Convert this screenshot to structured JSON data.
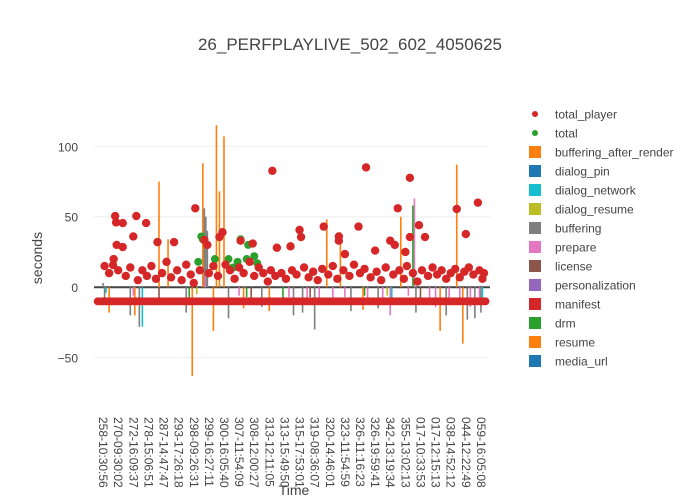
{
  "chart_data": {
    "type": "bar+scatter",
    "title": "26_PERFPLAYLIVE_502_602_4050625",
    "xlabel": "Time",
    "ylabel": "seconds",
    "ylim": [
      -80,
      147
    ],
    "xlim": [
      -0.6,
      25.6
    ],
    "yticks": [
      -50,
      0,
      50,
      100
    ],
    "ytick_labels": [
      "−50",
      "0",
      "50",
      "100"
    ],
    "grid": true,
    "legend_position": "right",
    "categories": [
      "258-10:30:56",
      "270-09:30:02",
      "272-16:09:37",
      "278-15:06:51",
      "287-14:47:47",
      "293-17:26:18",
      "298-09:26:31",
      "299-16:27:11",
      "300-16:05:40",
      "307-11:54:09",
      "308-12:00:27",
      "313-12:11:05",
      "313-15:49:50",
      "315-17:53:01",
      "319-08:36:07",
      "320-14:46:01",
      "323-11:54:59",
      "326-11:16:23",
      "326-19:59:41",
      "342-13:19:34",
      "355-13:02:13",
      "017-10:33:53",
      "017-12:15:13",
      "038-14:52:12",
      "044-12:22:49",
      "059-16:05:08"
    ],
    "legend": [
      {
        "name": "total_player",
        "color": "#d62728",
        "marker": "circle"
      },
      {
        "name": "total",
        "color": "#2ca02c",
        "marker": "circle"
      },
      {
        "name": "buffering_after_render",
        "color": "#ff7f0e",
        "marker": "square"
      },
      {
        "name": "dialog_pin",
        "color": "#1f77b4",
        "marker": "square"
      },
      {
        "name": "dialog_network",
        "color": "#17becf",
        "marker": "square"
      },
      {
        "name": "dialog_resume",
        "color": "#bcbd22",
        "marker": "square"
      },
      {
        "name": "buffering",
        "color": "#7f7f7f",
        "marker": "square"
      },
      {
        "name": "prepare",
        "color": "#e377c2",
        "marker": "square"
      },
      {
        "name": "license",
        "color": "#8c564b",
        "marker": "square"
      },
      {
        "name": "personalization",
        "color": "#9467bd",
        "marker": "square"
      },
      {
        "name": "manifest",
        "color": "#d62728",
        "marker": "square"
      },
      {
        "name": "drm",
        "color": "#2ca02c",
        "marker": "square"
      },
      {
        "name": "resume",
        "color": "#ff7f0e",
        "marker": "square"
      },
      {
        "name": "media_url",
        "color": "#1f77b4",
        "marker": "square"
      }
    ],
    "bars": [
      [
        "buffering_after_render",
        3.7,
        75
      ],
      [
        "buffering_after_render",
        6.6,
        88
      ],
      [
        "buffering_after_render",
        7.5,
        115
      ],
      [
        "buffering_after_render",
        8.0,
        107
      ],
      [
        "buffering_after_render",
        7.7,
        68
      ],
      [
        "buffering_after_render",
        4.3,
        34
      ],
      [
        "buffering_after_render",
        5.9,
        -63
      ],
      [
        "buffering_after_render",
        7.3,
        -31
      ],
      [
        "buffering_after_render",
        14.8,
        48
      ],
      [
        "buffering_after_render",
        15.7,
        39
      ],
      [
        "buffering_after_render",
        19.7,
        50
      ],
      [
        "buffering_after_render",
        23.4,
        87
      ],
      [
        "buffering_after_render",
        23.8,
        -40
      ],
      [
        "buffering_after_render",
        22.3,
        -31
      ],
      [
        "buffering_after_render",
        0.4,
        -18
      ],
      [
        "buffering_after_render",
        2.1,
        -20
      ],
      [
        "buffering_after_render",
        9.3,
        -15
      ],
      [
        "buffering_after_render",
        17.2,
        -16
      ],
      [
        "buffering_after_render",
        11.0,
        -17
      ],
      [
        "buffering",
        6.7,
        56
      ],
      [
        "buffering",
        6.8,
        50
      ],
      [
        "buffering",
        6.9,
        40
      ],
      [
        "buffering",
        0.0,
        3
      ],
      [
        "buffering",
        0.1,
        -12
      ],
      [
        "buffering",
        1.8,
        -20
      ],
      [
        "buffering",
        2.4,
        -28
      ],
      [
        "buffering",
        5.5,
        -18
      ],
      [
        "buffering",
        8.3,
        -22
      ],
      [
        "buffering",
        10.5,
        -14
      ],
      [
        "buffering",
        12.6,
        -20
      ],
      [
        "buffering",
        13.2,
        -18
      ],
      [
        "buffering",
        14.0,
        -30
      ],
      [
        "buffering",
        16.4,
        -17
      ],
      [
        "buffering",
        18.2,
        -15
      ],
      [
        "buffering",
        20.7,
        -18
      ],
      [
        "buffering",
        22.7,
        -20
      ],
      [
        "buffering",
        24.1,
        -23
      ],
      [
        "buffering",
        24.6,
        -22
      ],
      [
        "buffering",
        25.0,
        -18
      ],
      [
        "prepare",
        6.75,
        8
      ],
      [
        "prepare",
        2.0,
        -6
      ],
      [
        "prepare",
        9.0,
        -6
      ],
      [
        "prepare",
        12.3,
        -7
      ],
      [
        "prepare",
        13.5,
        -8
      ],
      [
        "prepare",
        14.3,
        -9
      ],
      [
        "prepare",
        15.2,
        -8
      ],
      [
        "prepare",
        16.0,
        -7
      ],
      [
        "prepare",
        17.5,
        -10
      ],
      [
        "prepare",
        18.5,
        -9
      ],
      [
        "prepare",
        19.0,
        -20
      ],
      [
        "prepare",
        20.2,
        -6
      ],
      [
        "prepare",
        20.6,
        63
      ],
      [
        "prepare",
        21.6,
        -9
      ],
      [
        "prepare",
        22.0,
        -14
      ],
      [
        "prepare",
        22.9,
        -12
      ],
      [
        "prepare",
        23.6,
        -8
      ],
      [
        "prepare",
        24.3,
        -14
      ],
      [
        "prepare",
        24.9,
        -9
      ],
      [
        "drm",
        20.5,
        58
      ],
      [
        "drm",
        5.7,
        -8
      ],
      [
        "drm",
        9.5,
        -7
      ],
      [
        "drm",
        11.9,
        -10
      ],
      [
        "drm",
        17.3,
        -6
      ],
      [
        "dialog_network",
        2.6,
        -28
      ],
      [
        "dialog_network",
        19.1,
        -12
      ],
      [
        "dialog_network",
        25.1,
        -10
      ],
      [
        "dialog_network",
        0.2,
        -4
      ],
      [
        "license",
        3.7,
        -9
      ],
      [
        "license",
        9.8,
        -8
      ],
      [
        "license",
        13.7,
        -7
      ],
      [
        "license",
        21.0,
        -9
      ],
      [
        "dialog_resume",
        6.2,
        -5
      ],
      [
        "dialog_resume",
        18.8,
        -6
      ]
    ],
    "total": [
      [
        6.5,
        36
      ],
      [
        6.6,
        34
      ],
      [
        9.1,
        34
      ],
      [
        9.6,
        30
      ],
      [
        8.3,
        20
      ],
      [
        9.5,
        20
      ],
      [
        10.0,
        22
      ],
      [
        8.6,
        14
      ],
      [
        7.4,
        20
      ],
      [
        6.3,
        18
      ],
      [
        8.9,
        18
      ],
      [
        10.2,
        17
      ]
    ],
    "total_player": [
      [
        0.8,
        50.5
      ],
      [
        0.86,
        46
      ],
      [
        1.3,
        45.5
      ],
      [
        0.9,
        30
      ],
      [
        1.3,
        28.5
      ],
      [
        0.66,
        15.7
      ],
      [
        2.2,
        50.5
      ],
      [
        2.0,
        36
      ],
      [
        2.85,
        45.5
      ],
      [
        3.6,
        32
      ],
      [
        4.7,
        32
      ],
      [
        6.1,
        56
      ],
      [
        6.7,
        33.5
      ],
      [
        6.9,
        30
      ],
      [
        7.7,
        35.6
      ],
      [
        7.9,
        39
      ],
      [
        11.2,
        82.6
      ],
      [
        9.9,
        31
      ],
      [
        9.1,
        33
      ],
      [
        11.5,
        28
      ],
      [
        12.4,
        29
      ],
      [
        13.0,
        40.6
      ],
      [
        13.1,
        35.6
      ],
      [
        14.6,
        43
      ],
      [
        15.6,
        36
      ],
      [
        15.6,
        33
      ],
      [
        16.0,
        23.5
      ],
      [
        16.9,
        43
      ],
      [
        17.4,
        85
      ],
      [
        18.0,
        26
      ],
      [
        19.5,
        56
      ],
      [
        20.3,
        77.6
      ],
      [
        20.0,
        25
      ],
      [
        20.3,
        35.6
      ],
      [
        21.3,
        35.6
      ],
      [
        20.9,
        44
      ],
      [
        23.4,
        55.5
      ],
      [
        24.0,
        37.7
      ],
      [
        24.8,
        60
      ],
      [
        19.3,
        30
      ],
      [
        19.0,
        33
      ],
      [
        0.1,
        15
      ],
      [
        0.4,
        10
      ],
      [
        0.7,
        20
      ],
      [
        1.0,
        12
      ],
      [
        1.5,
        8
      ],
      [
        1.8,
        14
      ],
      [
        2.3,
        5
      ],
      [
        2.6,
        12
      ],
      [
        2.9,
        8
      ],
      [
        3.2,
        15
      ],
      [
        3.5,
        6
      ],
      [
        3.9,
        10
      ],
      [
        4.2,
        18
      ],
      [
        4.5,
        7
      ],
      [
        4.9,
        12
      ],
      [
        5.2,
        5
      ],
      [
        5.5,
        16
      ],
      [
        5.8,
        9
      ],
      [
        6.0,
        3
      ],
      [
        6.4,
        12
      ],
      [
        7.0,
        10
      ],
      [
        7.3,
        15
      ],
      [
        7.6,
        8
      ],
      [
        8.1,
        16
      ],
      [
        8.4,
        12
      ],
      [
        8.7,
        6
      ],
      [
        9.0,
        14
      ],
      [
        9.3,
        10
      ],
      [
        9.7,
        18
      ],
      [
        10.0,
        8
      ],
      [
        10.3,
        14
      ],
      [
        10.6,
        10
      ],
      [
        10.9,
        4
      ],
      [
        11.1,
        12
      ],
      [
        11.4,
        8
      ],
      [
        11.8,
        10
      ],
      [
        12.1,
        6
      ],
      [
        12.5,
        12
      ],
      [
        12.8,
        9
      ],
      [
        13.3,
        14
      ],
      [
        13.6,
        7
      ],
      [
        13.9,
        11
      ],
      [
        14.2,
        5
      ],
      [
        14.5,
        13
      ],
      [
        14.9,
        9
      ],
      [
        15.2,
        15
      ],
      [
        15.5,
        6
      ],
      [
        15.9,
        12
      ],
      [
        16.3,
        8
      ],
      [
        16.6,
        16
      ],
      [
        17.0,
        10
      ],
      [
        17.3,
        13
      ],
      [
        17.7,
        7
      ],
      [
        18.1,
        11
      ],
      [
        18.4,
        5
      ],
      [
        18.7,
        14
      ],
      [
        19.2,
        9
      ],
      [
        19.6,
        12
      ],
      [
        19.9,
        6
      ],
      [
        20.1,
        15
      ],
      [
        20.5,
        10
      ],
      [
        20.8,
        4
      ],
      [
        21.1,
        12
      ],
      [
        21.5,
        8
      ],
      [
        21.8,
        14
      ],
      [
        22.1,
        9
      ],
      [
        22.4,
        12
      ],
      [
        22.7,
        6
      ],
      [
        23.0,
        10
      ],
      [
        23.3,
        13
      ],
      [
        23.6,
        7
      ],
      [
        23.9,
        11
      ],
      [
        24.2,
        14
      ],
      [
        24.5,
        9
      ],
      [
        24.9,
        12
      ],
      [
        25.1,
        6
      ],
      [
        25.2,
        10
      ]
    ],
    "manifest_line": {
      "y": -10,
      "x_start": -0.35,
      "x_end": 25.3,
      "count": 140
    }
  }
}
